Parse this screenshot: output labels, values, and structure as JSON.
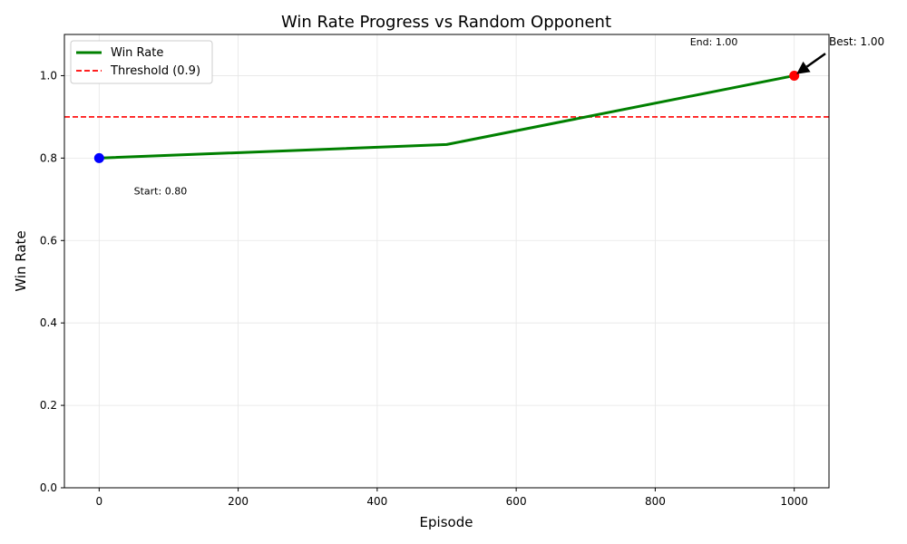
{
  "chart_data": {
    "type": "line",
    "title": "Win Rate Progress vs Random Opponent",
    "xlabel": "Episode",
    "ylabel": "Win Rate",
    "xlim": [
      -50,
      1050
    ],
    "ylim": [
      0,
      1.1
    ],
    "xticks": [
      0,
      200,
      400,
      600,
      800,
      1000
    ],
    "yticks": [
      0.0,
      0.2,
      0.4,
      0.6,
      0.8,
      1.0
    ],
    "xtick_labels": [
      "0",
      "200",
      "400",
      "600",
      "800",
      "1000"
    ],
    "ytick_labels": [
      "0.0",
      "0.2",
      "0.4",
      "0.6",
      "0.8",
      "1.0"
    ],
    "grid": true,
    "legend_position": "upper-left",
    "series": [
      {
        "name": "Win Rate",
        "color": "#008000",
        "x": [
          0,
          500,
          1000
        ],
        "y": [
          0.8,
          0.833,
          1.0
        ]
      }
    ],
    "threshold": {
      "name": "Threshold (0.9)",
      "value": 0.9,
      "color": "#ff0000",
      "style": "dashed"
    },
    "markers": [
      {
        "x": 0,
        "y": 0.8,
        "color": "#0000ff"
      },
      {
        "x": 1000,
        "y": 1.0,
        "color": "#ff0000"
      }
    ],
    "annotations": {
      "start": {
        "text": "Start: 0.80",
        "x": 50,
        "y": 0.72
      },
      "end": {
        "text": "End: 1.00",
        "x": 850,
        "y": 1.08
      },
      "best": {
        "text": "Best: 1.00",
        "x": 1000,
        "y": 1.0,
        "text_x": 1050,
        "text_y": 1.08
      }
    }
  }
}
